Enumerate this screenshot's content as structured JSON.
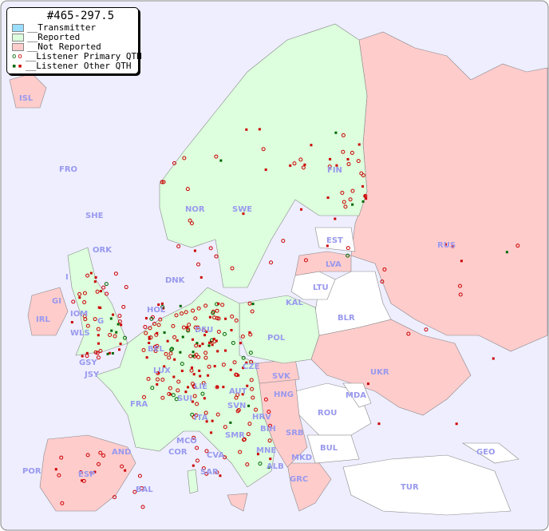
{
  "legend": {
    "title": "#465-297.5",
    "items": [
      {
        "label": "__Transmitter",
        "color": "#99ddff"
      },
      {
        "label": "__Reported",
        "color": "#ddffdd"
      },
      {
        "label": "__Not Reported",
        "color": "#ffcccc"
      },
      {
        "label": "__Listener Primary QTH",
        "marker": "circle"
      },
      {
        "label": "__Listener Other QTH",
        "marker": "square"
      }
    ]
  },
  "colors": {
    "background": "#eeeeff",
    "reported": "#ddffdd",
    "not_reported": "#ffcccc",
    "no_data": "#ffffff",
    "primary_marker": "#cc0000",
    "primary_marker_alt": "#006600"
  },
  "countries": [
    "ISL",
    "FRO",
    "SHE",
    "ORK",
    "NOR",
    "SWE",
    "FIN",
    "EST",
    "LVA",
    "LTU",
    "KAL",
    "RUS",
    "BLR",
    "DNK",
    "HOL",
    "DEU",
    "POL",
    "IRL",
    "IOM",
    "WLS",
    "GSY",
    "JSY",
    "BEL",
    "LUX",
    "CZE",
    "SVK",
    "UKR",
    "FRA",
    "SUI",
    "LIE",
    "AUT",
    "HNG",
    "MDA",
    "SVN",
    "HRV",
    "ROU",
    "ITA",
    "SMR",
    "BIH",
    "SRB",
    "MCO",
    "COR",
    "CVA",
    "MNE",
    "BUL",
    "GEO",
    "AND",
    "ALB",
    "MKD",
    "POR",
    "ESP",
    "SAR",
    "GRC",
    "BAL",
    "TUR",
    "G",
    "GI",
    "I"
  ]
}
